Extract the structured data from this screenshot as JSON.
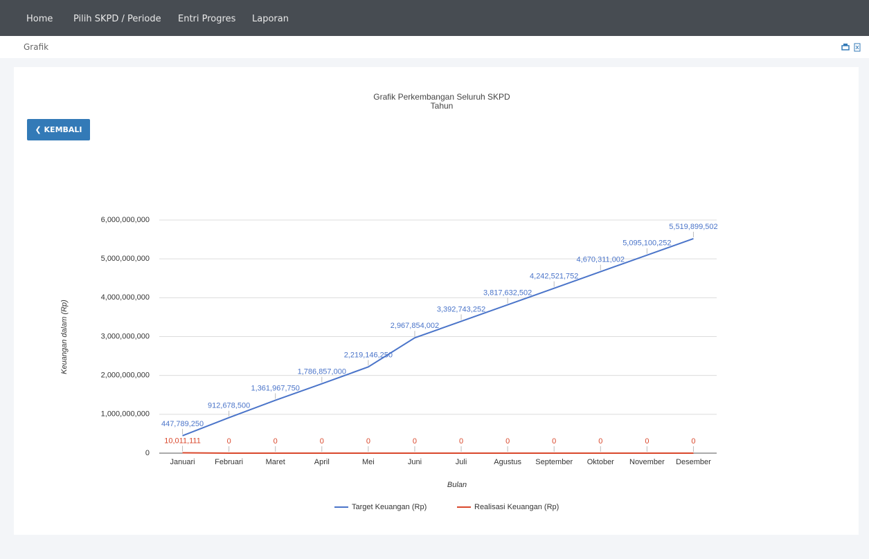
{
  "nav": [
    "Home",
    "Pilih SKPD / Periode",
    "Entri Progres",
    "Laporan"
  ],
  "breadcrumb": "Grafik",
  "button": "KEMBALI",
  "chart_data": {
    "type": "line",
    "title": "Grafik Perkembangan Seluruh SKPD",
    "subtitle": "Tahun",
    "x_label": "Bulan",
    "y_label": "Keuangan dalam (Rp)",
    "categories": [
      "Januari",
      "Februari",
      "Maret",
      "April",
      "Mei",
      "Juni",
      "Juli",
      "Agustus",
      "September",
      "Oktober",
      "November",
      "Desember"
    ],
    "series": [
      {
        "name": "Target Keuangan (Rp)",
        "color": "#4a74c9",
        "values": [
          447789250,
          912678500,
          1361967750,
          1786857000,
          2219146250,
          2967854002,
          3392743252,
          3817632502,
          4242521752,
          4670311002,
          5095100252,
          5519899502
        ],
        "value_labels": [
          "447,789,250",
          "912,678,500",
          "1,361,967,750",
          "1,786,857,000",
          "2,219,146,250",
          "2,967,854,002",
          "3,392,743,252",
          "3,817,632,502",
          "4,242,521,752",
          "4,670,311,002",
          "5,095,100,252",
          "5,519,899,502"
        ]
      },
      {
        "name": "Realisasi Keuangan (Rp)",
        "color": "#d9472b",
        "values": [
          10011111,
          0,
          0,
          0,
          0,
          0,
          0,
          0,
          0,
          0,
          0,
          0
        ],
        "value_labels": [
          "10,011,111",
          "0",
          "0",
          "0",
          "0",
          "0",
          "0",
          "0",
          "0",
          "0",
          "0",
          "0"
        ]
      }
    ],
    "ylim": [
      0,
      6000000000
    ],
    "yticks": [
      0,
      {
        "value": 1000000000,
        "label": "1,000,000,000"
      },
      {
        "value": 2000000000,
        "label": "2,000,000,000"
      },
      {
        "value": 3000000000,
        "label": "3,000,000,000"
      },
      {
        "value": 4000000000,
        "label": "4,000,000,000"
      },
      {
        "value": 5000000000,
        "label": "5,000,000,000"
      },
      {
        "value": 6000000000,
        "label": "6,000,000,000"
      }
    ],
    "grid": true,
    "legend": "bottom"
  }
}
